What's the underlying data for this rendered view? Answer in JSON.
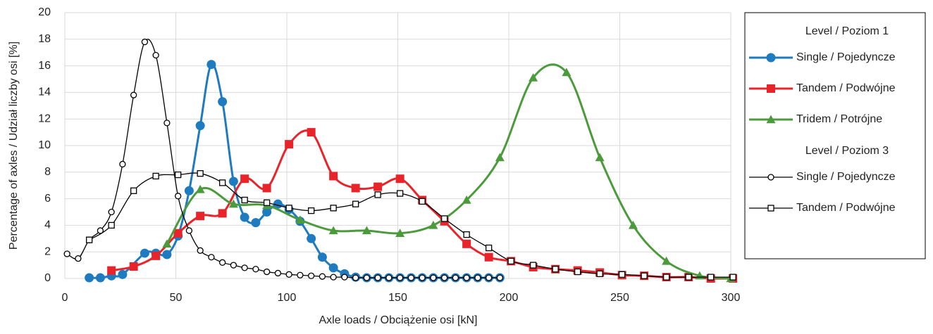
{
  "chart_data": {
    "type": "line",
    "smooth": true,
    "grid": true,
    "xlabel": "Axle loads / Obciążenie osi [kN]",
    "ylabel": "Percentage of axles / Udział liczby osi [%]",
    "xlim": [
      0,
      300
    ],
    "xticks": [
      0,
      50,
      100,
      150,
      200,
      250,
      300
    ],
    "ylim": [
      0,
      20
    ],
    "yticks": [
      0,
      2,
      4,
      6,
      8,
      10,
      12,
      14,
      16,
      18,
      20
    ],
    "legend_groups": [
      {
        "title": "Level / Poziom 1",
        "series": [
          {
            "name": "Single / Pojedyncze",
            "color": "#1f7bc0",
            "marker": "circle",
            "filled": true,
            "width": 3,
            "x": [
              11,
              16,
              21,
              26,
              36,
              41,
              46,
              51,
              56,
              61,
              66,
              71,
              76,
              81,
              86,
              91,
              96,
              101,
              106,
              111,
              116,
              121,
              126,
              131,
              136,
              141,
              146,
              151,
              156,
              161,
              166,
              171,
              176,
              181,
              186,
              191,
              196
            ],
            "values": [
              0.05,
              0.05,
              0.2,
              0.3,
              1.9,
              1.9,
              1.8,
              3.2,
              6.6,
              11.5,
              16.1,
              13.3,
              7.3,
              4.6,
              4.2,
              5.0,
              5.6,
              5.2,
              4.3,
              3.0,
              1.6,
              0.8,
              0.35,
              0.1,
              0.05,
              0.05,
              0.05,
              0.05,
              0.05,
              0.05,
              0.05,
              0.05,
              0.05,
              0.05,
              0.05,
              0.05,
              0.05
            ]
          },
          {
            "name": "Tandem / Podwójne",
            "color": "#e8242a",
            "marker": "square",
            "filled": true,
            "width": 3,
            "x": [
              21,
              31,
              41,
              51,
              61,
              71,
              81,
              91,
              101,
              111,
              121,
              131,
              141,
              151,
              161,
              171,
              181,
              191,
              201,
              211,
              221,
              231,
              241,
              251,
              261,
              271,
              281,
              291,
              301
            ],
            "values": [
              0.6,
              0.9,
              1.7,
              3.4,
              4.7,
              4.9,
              7.5,
              6.8,
              10.1,
              11.0,
              7.7,
              6.8,
              6.9,
              7.5,
              5.9,
              4.3,
              2.6,
              1.6,
              1.3,
              0.85,
              0.7,
              0.6,
              0.45,
              0.25,
              0.2,
              0.1,
              0.1,
              0.0,
              0.0
            ]
          },
          {
            "name": "Tridem / Potrójne",
            "color": "#4b9b3c",
            "marker": "triangle",
            "filled": true,
            "width": 3,
            "x": [
              46,
              61,
              76,
              91,
              106,
              121,
              136,
              151,
              166,
              181,
              196,
              211,
              226,
              241,
              256,
              271,
              286,
              300
            ],
            "values": [
              2.6,
              6.7,
              5.6,
              5.5,
              4.4,
              3.6,
              3.6,
              3.4,
              4.0,
              5.9,
              9.1,
              15.1,
              15.5,
              9.1,
              4.0,
              1.3,
              0.2,
              0.0
            ]
          }
        ]
      },
      {
        "title": "Level / Poziom 3",
        "series": [
          {
            "name": "Single / Pojedyncze",
            "color": "#000000",
            "marker": "circle",
            "filled": false,
            "width": 1.3,
            "x": [
              1,
              6,
              11,
              16,
              21,
              26,
              31,
              36,
              41,
              46,
              51,
              56,
              61,
              66,
              71,
              76,
              81,
              86,
              91,
              96,
              101,
              106,
              111,
              116,
              121,
              126,
              131,
              136,
              141,
              146,
              151,
              156,
              161,
              166,
              171,
              176,
              181,
              186,
              191,
              196
            ],
            "values": [
              1.85,
              1.5,
              2.9,
              3.6,
              5.0,
              8.6,
              13.8,
              17.8,
              16.8,
              11.7,
              6.2,
              3.6,
              2.1,
              1.6,
              1.2,
              1.0,
              0.8,
              0.7,
              0.5,
              0.4,
              0.3,
              0.25,
              0.2,
              0.15,
              0.1,
              0.1,
              0.05,
              0.05,
              0.05,
              0.05,
              0.05,
              0.05,
              0.05,
              0.05,
              0.05,
              0.05,
              0.05,
              0.05,
              0.05,
              0.05
            ]
          },
          {
            "name": "Tandem / Podwójne",
            "color": "#000000",
            "marker": "square",
            "filled": false,
            "width": 1.3,
            "x": [
              11,
              21,
              31,
              41,
              51,
              61,
              71,
              81,
              91,
              101,
              111,
              121,
              131,
              141,
              151,
              161,
              171,
              181,
              191,
              201,
              211,
              221,
              231,
              241,
              251,
              261,
              271,
              281,
              291,
              301
            ],
            "values": [
              2.9,
              4.0,
              6.6,
              7.7,
              7.8,
              7.9,
              7.2,
              5.9,
              5.7,
              5.3,
              5.1,
              5.3,
              5.6,
              6.3,
              6.4,
              5.8,
              4.5,
              3.3,
              2.3,
              1.3,
              1.0,
              0.7,
              0.5,
              0.35,
              0.3,
              0.2,
              0.1,
              0.1,
              0.1,
              0.1
            ]
          }
        ]
      }
    ]
  }
}
